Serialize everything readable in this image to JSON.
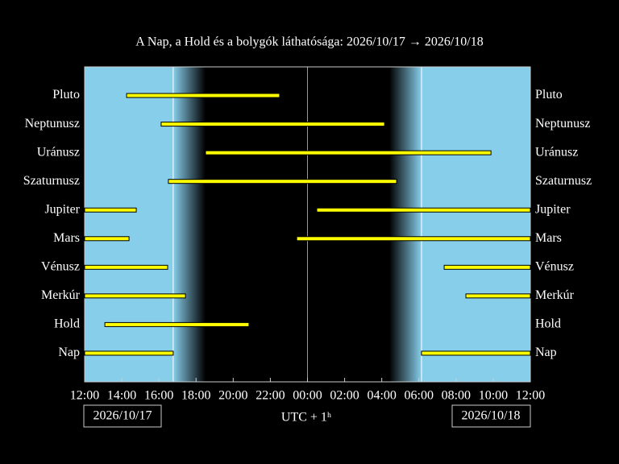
{
  "chart_data": {
    "type": "visibility",
    "title": "A Nap, a Hold és a bolygók láthatósága: 2026/10/17 → 2026/10/18",
    "x_label": "UTC + 1ʰ",
    "dates": [
      "2026/10/17",
      "2026/10/18"
    ],
    "xlim": [
      0,
      24
    ],
    "xticks": [
      {
        "value": 0,
        "label": "12:00"
      },
      {
        "value": 2,
        "label": "14:00"
      },
      {
        "value": 4,
        "label": "16:00"
      },
      {
        "value": 6,
        "label": "18:00"
      },
      {
        "value": 8,
        "label": "20:00"
      },
      {
        "value": 10,
        "label": "22:00"
      },
      {
        "value": 12,
        "label": "00:00"
      },
      {
        "value": 14,
        "label": "02:00"
      },
      {
        "value": 16,
        "label": "04:00"
      },
      {
        "value": 18,
        "label": "06:00"
      },
      {
        "value": 20,
        "label": "08:00"
      },
      {
        "value": 22,
        "label": "10:00"
      },
      {
        "value": 24,
        "label": "12:00"
      }
    ],
    "color": "#ffff00",
    "rows": [
      {
        "name": "Pluto",
        "intervals": [
          [
            2.26,
            10.5
          ]
        ]
      },
      {
        "name": "Neptunusz",
        "intervals": [
          [
            4.12,
            16.15
          ]
        ]
      },
      {
        "name": "Uránusz",
        "intervals": [
          [
            6.51,
            21.88
          ]
        ]
      },
      {
        "name": "Szaturnusz",
        "intervals": [
          [
            4.51,
            16.8
          ]
        ]
      },
      {
        "name": "Jupiter",
        "intervals": [
          [
            0,
            2.78
          ],
          [
            12.5,
            24
          ]
        ]
      },
      {
        "name": "Mars",
        "intervals": [
          [
            0,
            2.39
          ],
          [
            11.42,
            24
          ]
        ]
      },
      {
        "name": "Vénusz",
        "intervals": [
          [
            0,
            4.47
          ],
          [
            19.36,
            24
          ]
        ]
      },
      {
        "name": "Merkúr",
        "intervals": [
          [
            0,
            5.43
          ],
          [
            20.53,
            24
          ]
        ]
      },
      {
        "name": "Hold",
        "intervals": [
          [
            1.09,
            8.85
          ]
        ]
      },
      {
        "name": "Nap",
        "intervals": [
          [
            0,
            4.77
          ],
          [
            18.14,
            24
          ]
        ]
      }
    ]
  }
}
